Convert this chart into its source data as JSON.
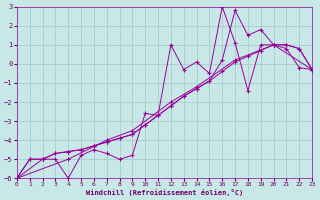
{
  "xlabel": "Windchill (Refroidissement éolien,°C)",
  "bg_color": "#c8e8e8",
  "grid_color": "#a0c8c8",
  "line_color": "#990099",
  "text_color": "#660066",
  "xlim": [
    0,
    23
  ],
  "ylim": [
    -6,
    3
  ],
  "xticks": [
    0,
    1,
    2,
    3,
    4,
    5,
    6,
    7,
    8,
    9,
    10,
    11,
    12,
    13,
    14,
    15,
    16,
    17,
    18,
    19,
    20,
    21,
    22,
    23
  ],
  "yticks": [
    -6,
    -5,
    -4,
    -3,
    -2,
    -1,
    0,
    1,
    2,
    3
  ],
  "line1_x": [
    0,
    1,
    2,
    3,
    4,
    5,
    6,
    7,
    8,
    9,
    10,
    11,
    12,
    13,
    14,
    15,
    16,
    17,
    18,
    19,
    20,
    21,
    22,
    23
  ],
  "line1_y": [
    -6.0,
    -5.0,
    -5.0,
    -4.7,
    -4.6,
    -4.5,
    -4.3,
    -4.1,
    -3.9,
    -3.7,
    -3.2,
    -2.7,
    -2.2,
    -1.7,
    -1.3,
    -0.9,
    -0.4,
    0.1,
    0.4,
    0.7,
    1.0,
    1.0,
    0.8,
    -0.3
  ],
  "line2_x": [
    0,
    2,
    3,
    4,
    5,
    6,
    7,
    8,
    9,
    10,
    11,
    12,
    13,
    14,
    15,
    16,
    17,
    18,
    19,
    20,
    21,
    22,
    23
  ],
  "line2_y": [
    -6.0,
    -5.0,
    -5.0,
    -6.0,
    -4.8,
    -4.5,
    -4.7,
    -5.0,
    -4.8,
    -2.6,
    -2.7,
    1.0,
    -0.3,
    0.1,
    -0.5,
    3.0,
    1.1,
    -1.4,
    1.0,
    1.0,
    0.8,
    -0.2,
    -0.3
  ],
  "line3_x": [
    0,
    1,
    2,
    3,
    4,
    5,
    6,
    7,
    8,
    9,
    10,
    11,
    12,
    13,
    14,
    15,
    16,
    17,
    18,
    19,
    20,
    21,
    22,
    23
  ],
  "line3_y": [
    -6.0,
    -5.0,
    -5.0,
    -4.7,
    -4.6,
    -4.5,
    -4.3,
    -4.1,
    -3.9,
    -3.7,
    -3.2,
    -2.7,
    -2.2,
    -1.7,
    -1.3,
    -0.9,
    0.2,
    2.8,
    1.5,
    1.8,
    1.0,
    1.0,
    0.8,
    -0.3
  ],
  "line4_x": [
    0,
    4,
    7,
    9,
    12,
    14,
    17,
    20,
    23
  ],
  "line4_y": [
    -6.0,
    -5.0,
    -4.0,
    -3.5,
    -2.0,
    -1.2,
    0.2,
    1.0,
    -0.3
  ],
  "all_marker_x": [
    0,
    1,
    2,
    3,
    4,
    5,
    6,
    7,
    8,
    9,
    10,
    11,
    12,
    13,
    14,
    15,
    16,
    17,
    18,
    19,
    20,
    21,
    22,
    23
  ],
  "all_marker_y": [
    -6.0,
    -5.0,
    -5.0,
    -4.7,
    -4.6,
    -4.5,
    -4.3,
    -4.1,
    -3.9,
    -3.7,
    -3.2,
    -2.7,
    -2.2,
    -1.7,
    -1.3,
    -0.9,
    -0.4,
    0.1,
    0.4,
    0.7,
    1.0,
    1.0,
    0.8,
    -0.3
  ],
  "extra_marker_x": [
    4,
    7,
    10,
    12,
    16,
    17
  ],
  "extra_marker_y": [
    -6.0,
    -4.7,
    -2.6,
    1.0,
    3.0,
    1.1
  ]
}
